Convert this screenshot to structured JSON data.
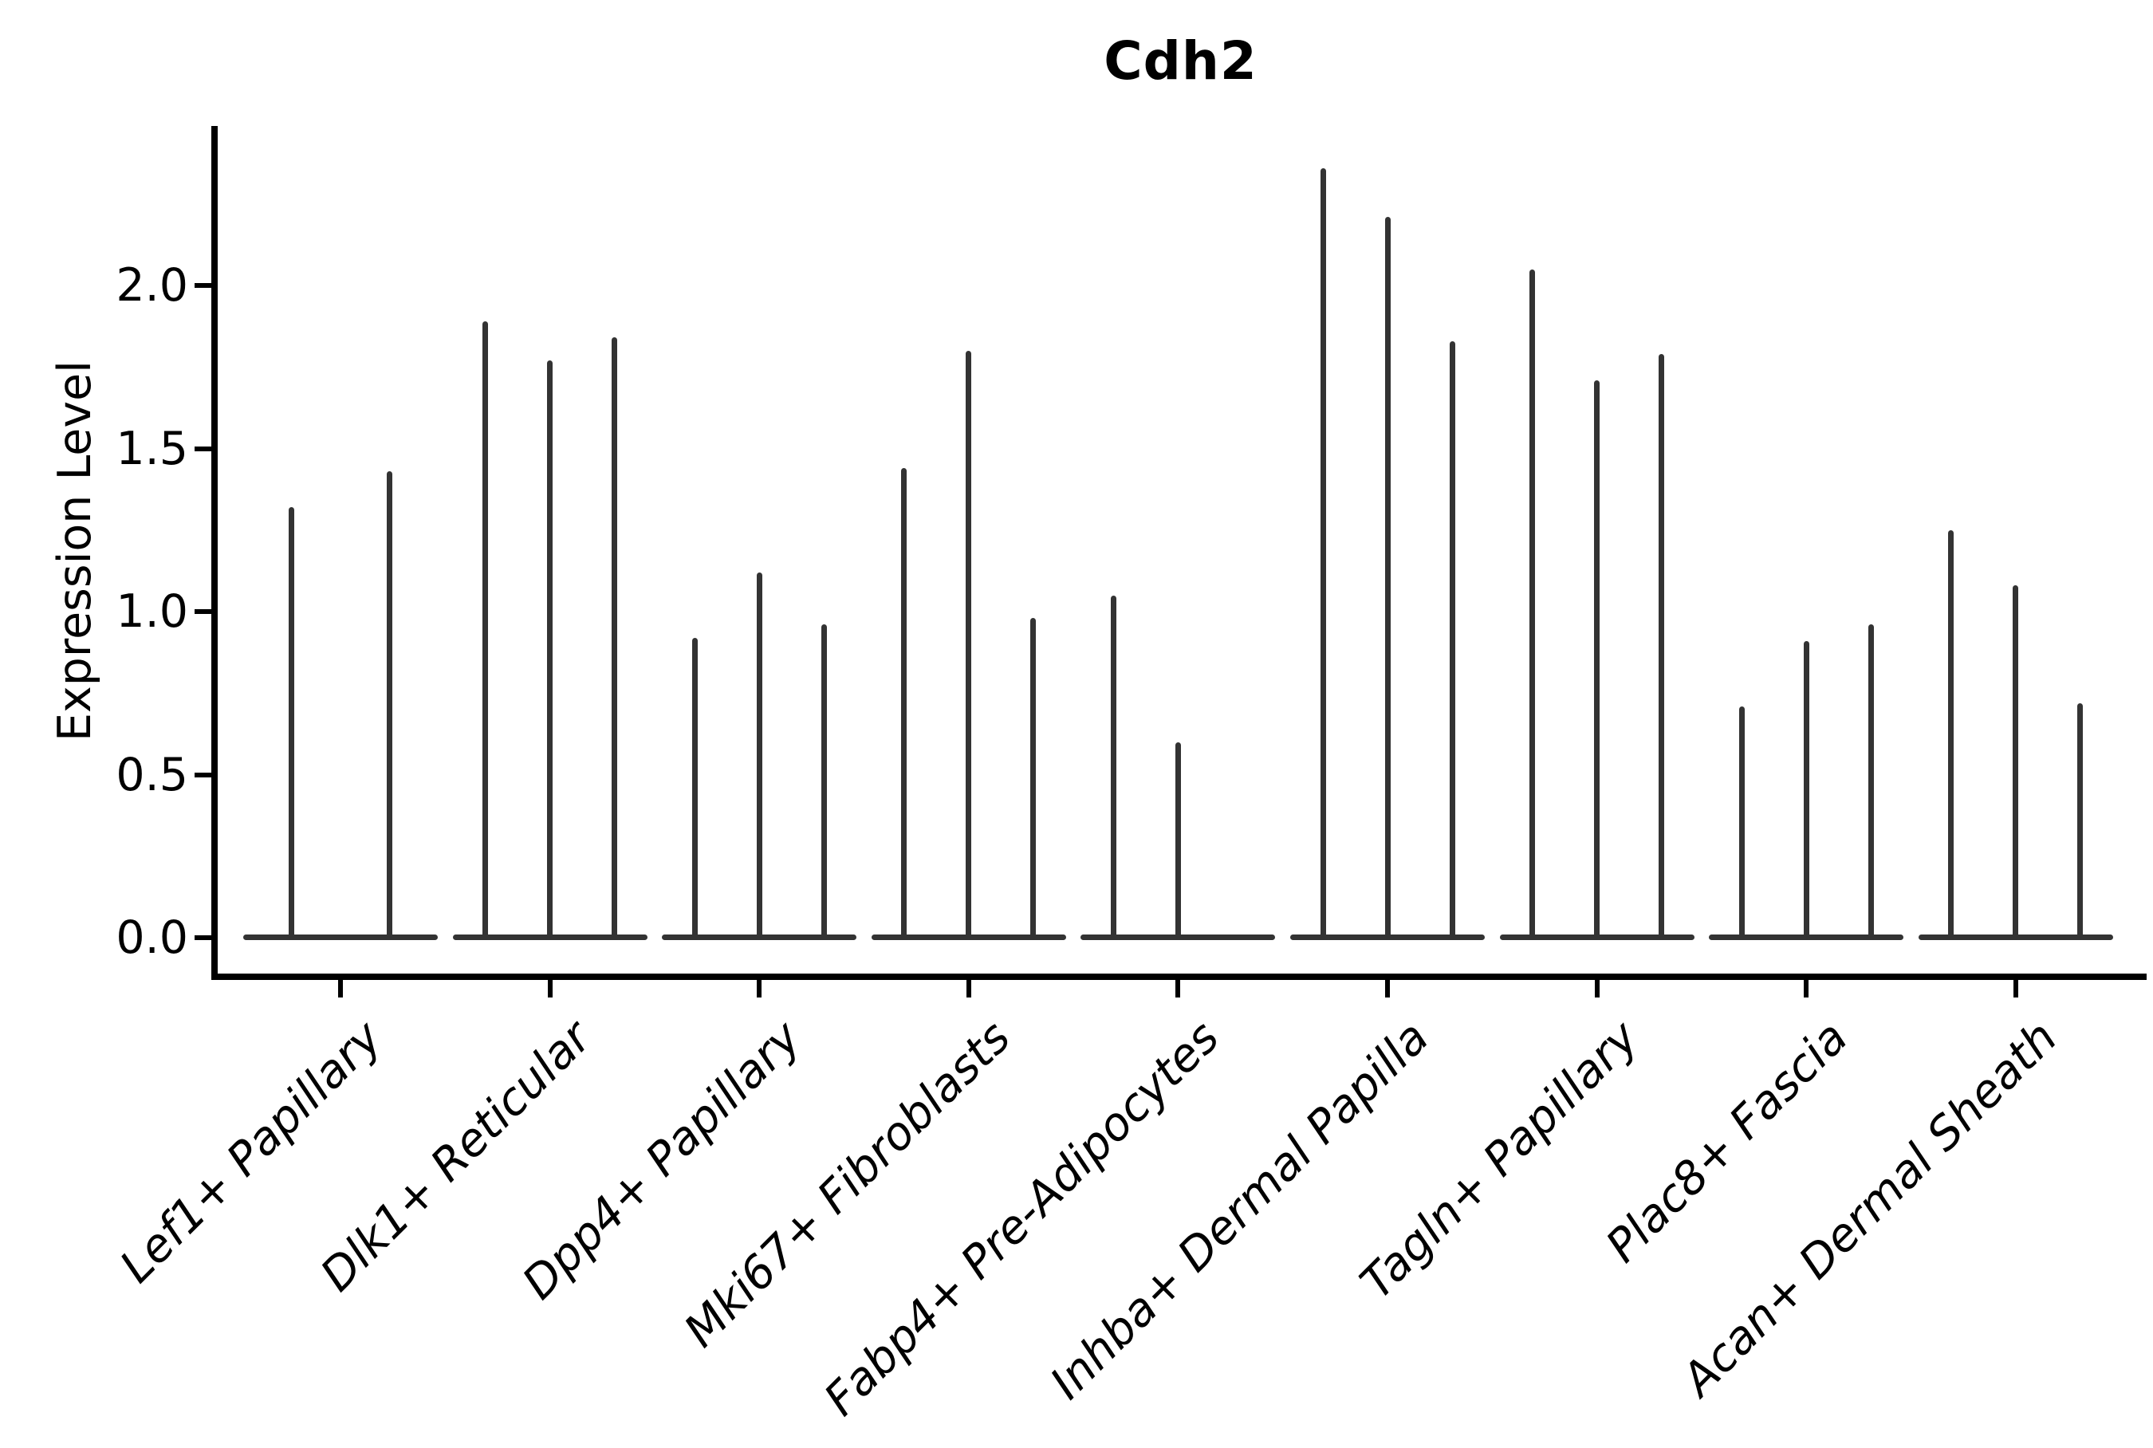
{
  "chart_data": {
    "type": "violin",
    "title": "Cdh2",
    "ylabel": "Expression Level",
    "xlabel": "",
    "ytick_labels": [
      "2.0",
      "1.5",
      "1.0",
      "0.5",
      "0.0"
    ],
    "ytick_values": [
      2.0,
      1.5,
      1.0,
      0.5,
      0.0
    ],
    "ylim": [
      -0.12,
      2.49
    ],
    "grid": false,
    "legend": "none",
    "style": "needle-thin violin densities rising from a flat base at expression 0; 2-3 violins per category",
    "categories": [
      {
        "label": "Lef1+ Papillary",
        "violin_max_values": [
          1.32,
          1.43
        ]
      },
      {
        "label": "Dlk1+ Reticular",
        "violin_max_values": [
          1.89,
          1.77,
          1.84
        ]
      },
      {
        "label": "Dpp4+ Papillary",
        "violin_max_values": [
          0.92,
          1.12,
          0.96
        ]
      },
      {
        "label": "Mki67+ Fibroblasts",
        "violin_max_values": [
          1.44,
          1.8,
          0.98
        ]
      },
      {
        "label": "Fabp4+ Pre-Adipocytes",
        "violin_max_values": [
          1.05,
          0.6,
          0.0
        ]
      },
      {
        "label": "Inhba+ Dermal Papilla",
        "violin_max_values": [
          2.36,
          2.21,
          1.83
        ]
      },
      {
        "label": "Tagln+ Papillary",
        "violin_max_values": [
          2.05,
          1.71,
          1.79
        ]
      },
      {
        "label": "Plac8+ Fascia",
        "violin_max_values": [
          0.71,
          0.91,
          0.96
        ]
      },
      {
        "label": "Acan+ Dermal Sheath",
        "violin_max_values": [
          1.25,
          1.08,
          0.72
        ]
      }
    ],
    "colors": {
      "violin": "#333333",
      "spine": "#000000",
      "text": "#000000",
      "background": "#ffffff"
    }
  }
}
